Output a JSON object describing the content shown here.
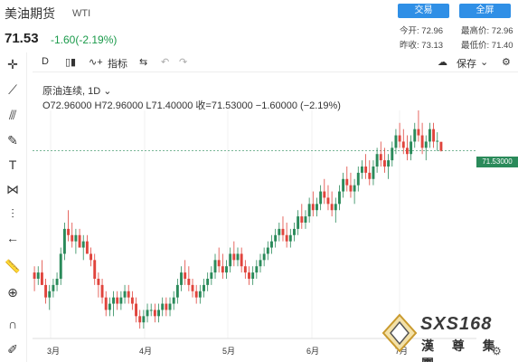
{
  "header": {
    "title": "美油期货",
    "symbol": "WTI",
    "price": "71.53",
    "change": "-1.60(-2.19%)",
    "trade_button": "交易",
    "fullscreen_button": "全屏",
    "stats": {
      "open_label": "今开:",
      "open": "72.96",
      "high_label": "最高价:",
      "high": "72.96",
      "prev_label": "昨收:",
      "prev": "73.13",
      "low_label": "最低价:",
      "low": "71.40"
    }
  },
  "toolbar": {
    "interval": "D",
    "indicator_label": "指标",
    "save_label": "保存"
  },
  "legend": {
    "name": "原油连续",
    "interval": "1D",
    "ohlc": "O72.96000 H72.96000 L71.40000 收=71.53000 −1.60000 (−2.19%)"
  },
  "price_tag": "71.53000",
  "x_labels": [
    "3月",
    "4月",
    "5月",
    "6月",
    "7月"
  ],
  "watermark": {
    "brand": "SXS168",
    "cn": "漢 尊 集 團"
  },
  "colors": {
    "up": "#2a8a5a",
    "down": "#e0443c",
    "accent": "#2f8fe6"
  },
  "chart_data": {
    "type": "candlestick",
    "title": "",
    "xlabel": "",
    "ylabel": "",
    "last_close": 71.53,
    "ylim": [
      42,
      78
    ],
    "candles": [
      [
        52,
        53,
        49,
        51
      ],
      [
        51,
        53,
        50,
        52
      ],
      [
        52,
        54,
        50,
        50
      ],
      [
        50,
        51,
        47,
        48
      ],
      [
        48,
        50,
        46,
        49
      ],
      [
        49,
        51,
        48,
        50
      ],
      [
        50,
        52,
        49,
        51
      ],
      [
        51,
        56,
        50,
        55
      ],
      [
        55,
        60,
        54,
        59
      ],
      [
        59,
        62,
        57,
        58
      ],
      [
        58,
        60,
        56,
        57
      ],
      [
        57,
        59,
        55,
        58
      ],
      [
        58,
        59,
        56,
        56
      ],
      [
        56,
        58,
        54,
        57
      ],
      [
        57,
        58,
        55,
        55
      ],
      [
        55,
        56,
        53,
        54
      ],
      [
        54,
        55,
        50,
        51
      ],
      [
        51,
        52,
        48,
        50
      ],
      [
        50,
        51,
        47,
        48
      ],
      [
        48,
        49,
        45,
        46
      ],
      [
        46,
        48,
        45,
        47
      ],
      [
        47,
        49,
        45,
        48
      ],
      [
        48,
        49,
        46,
        47
      ],
      [
        47,
        49,
        46,
        48
      ],
      [
        48,
        50,
        47,
        49
      ],
      [
        49,
        50,
        47,
        48
      ],
      [
        48,
        49,
        46,
        47
      ],
      [
        47,
        48,
        44,
        45
      ],
      [
        45,
        46,
        43,
        44
      ],
      [
        44,
        46,
        43,
        45
      ],
      [
        45,
        47,
        44,
        46
      ],
      [
        46,
        47,
        45,
        46
      ],
      [
        46,
        47,
        44,
        45
      ],
      [
        45,
        47,
        44,
        46
      ],
      [
        46,
        48,
        45,
        47
      ],
      [
        47,
        48,
        45,
        46
      ],
      [
        46,
        48,
        45,
        47
      ],
      [
        47,
        49,
        46,
        48
      ],
      [
        48,
        51,
        47,
        50
      ],
      [
        50,
        53,
        49,
        52
      ],
      [
        52,
        54,
        50,
        51
      ],
      [
        51,
        53,
        49,
        50
      ],
      [
        50,
        51,
        48,
        49
      ],
      [
        49,
        50,
        47,
        48
      ],
      [
        48,
        50,
        47,
        49
      ],
      [
        49,
        51,
        48,
        50
      ],
      [
        50,
        52,
        49,
        51
      ],
      [
        51,
        53,
        50,
        52
      ],
      [
        52,
        55,
        51,
        54
      ],
      [
        54,
        56,
        52,
        53
      ],
      [
        53,
        55,
        51,
        52
      ],
      [
        52,
        54,
        51,
        53
      ],
      [
        53,
        56,
        52,
        55
      ],
      [
        55,
        57,
        53,
        54
      ],
      [
        54,
        56,
        53,
        55
      ],
      [
        55,
        56,
        52,
        53
      ],
      [
        53,
        54,
        51,
        52
      ],
      [
        52,
        53,
        50,
        51
      ],
      [
        51,
        53,
        50,
        52
      ],
      [
        52,
        54,
        51,
        53
      ],
      [
        53,
        55,
        52,
        54
      ],
      [
        54,
        56,
        53,
        55
      ],
      [
        55,
        57,
        54,
        56
      ],
      [
        56,
        58,
        55,
        57
      ],
      [
        57,
        59,
        56,
        58
      ],
      [
        58,
        60,
        57,
        59
      ],
      [
        59,
        61,
        57,
        58
      ],
      [
        58,
        60,
        56,
        57
      ],
      [
        57,
        59,
        56,
        58
      ],
      [
        58,
        60,
        57,
        59
      ],
      [
        59,
        62,
        58,
        61
      ],
      [
        61,
        63,
        59,
        60
      ],
      [
        60,
        62,
        59,
        61
      ],
      [
        61,
        64,
        60,
        63
      ],
      [
        63,
        65,
        61,
        62
      ],
      [
        62,
        64,
        61,
        63
      ],
      [
        63,
        66,
        62,
        65
      ],
      [
        65,
        67,
        63,
        64
      ],
      [
        64,
        66,
        62,
        63
      ],
      [
        63,
        65,
        61,
        62
      ],
      [
        62,
        64,
        60,
        63
      ],
      [
        63,
        66,
        62,
        65
      ],
      [
        65,
        68,
        64,
        67
      ],
      [
        67,
        69,
        65,
        66
      ],
      [
        66,
        68,
        64,
        65
      ],
      [
        65,
        67,
        63,
        66
      ],
      [
        66,
        69,
        65,
        68
      ],
      [
        68,
        70,
        67,
        69
      ],
      [
        69,
        71,
        67,
        68
      ],
      [
        68,
        70,
        66,
        67
      ],
      [
        67,
        70,
        66,
        69
      ],
      [
        69,
        72,
        68,
        71
      ],
      [
        71,
        73,
        69,
        70
      ],
      [
        70,
        72,
        68,
        69
      ],
      [
        69,
        71,
        67,
        70
      ],
      [
        70,
        73,
        69,
        72
      ],
      [
        72,
        75,
        71,
        74
      ],
      [
        74,
        76,
        72,
        73
      ],
      [
        73,
        75,
        71,
        72
      ],
      [
        72,
        74,
        70,
        71
      ],
      [
        71,
        74,
        70,
        73
      ],
      [
        73,
        76,
        72,
        75
      ],
      [
        75,
        78,
        73,
        74
      ],
      [
        74,
        76,
        71,
        72
      ],
      [
        72,
        74,
        70,
        73
      ],
      [
        73,
        76,
        72,
        75
      ],
      [
        75,
        76,
        72,
        73
      ],
      [
        73,
        74.5,
        71.5,
        73.13
      ],
      [
        72.96,
        72.96,
        71.4,
        71.53
      ]
    ]
  }
}
